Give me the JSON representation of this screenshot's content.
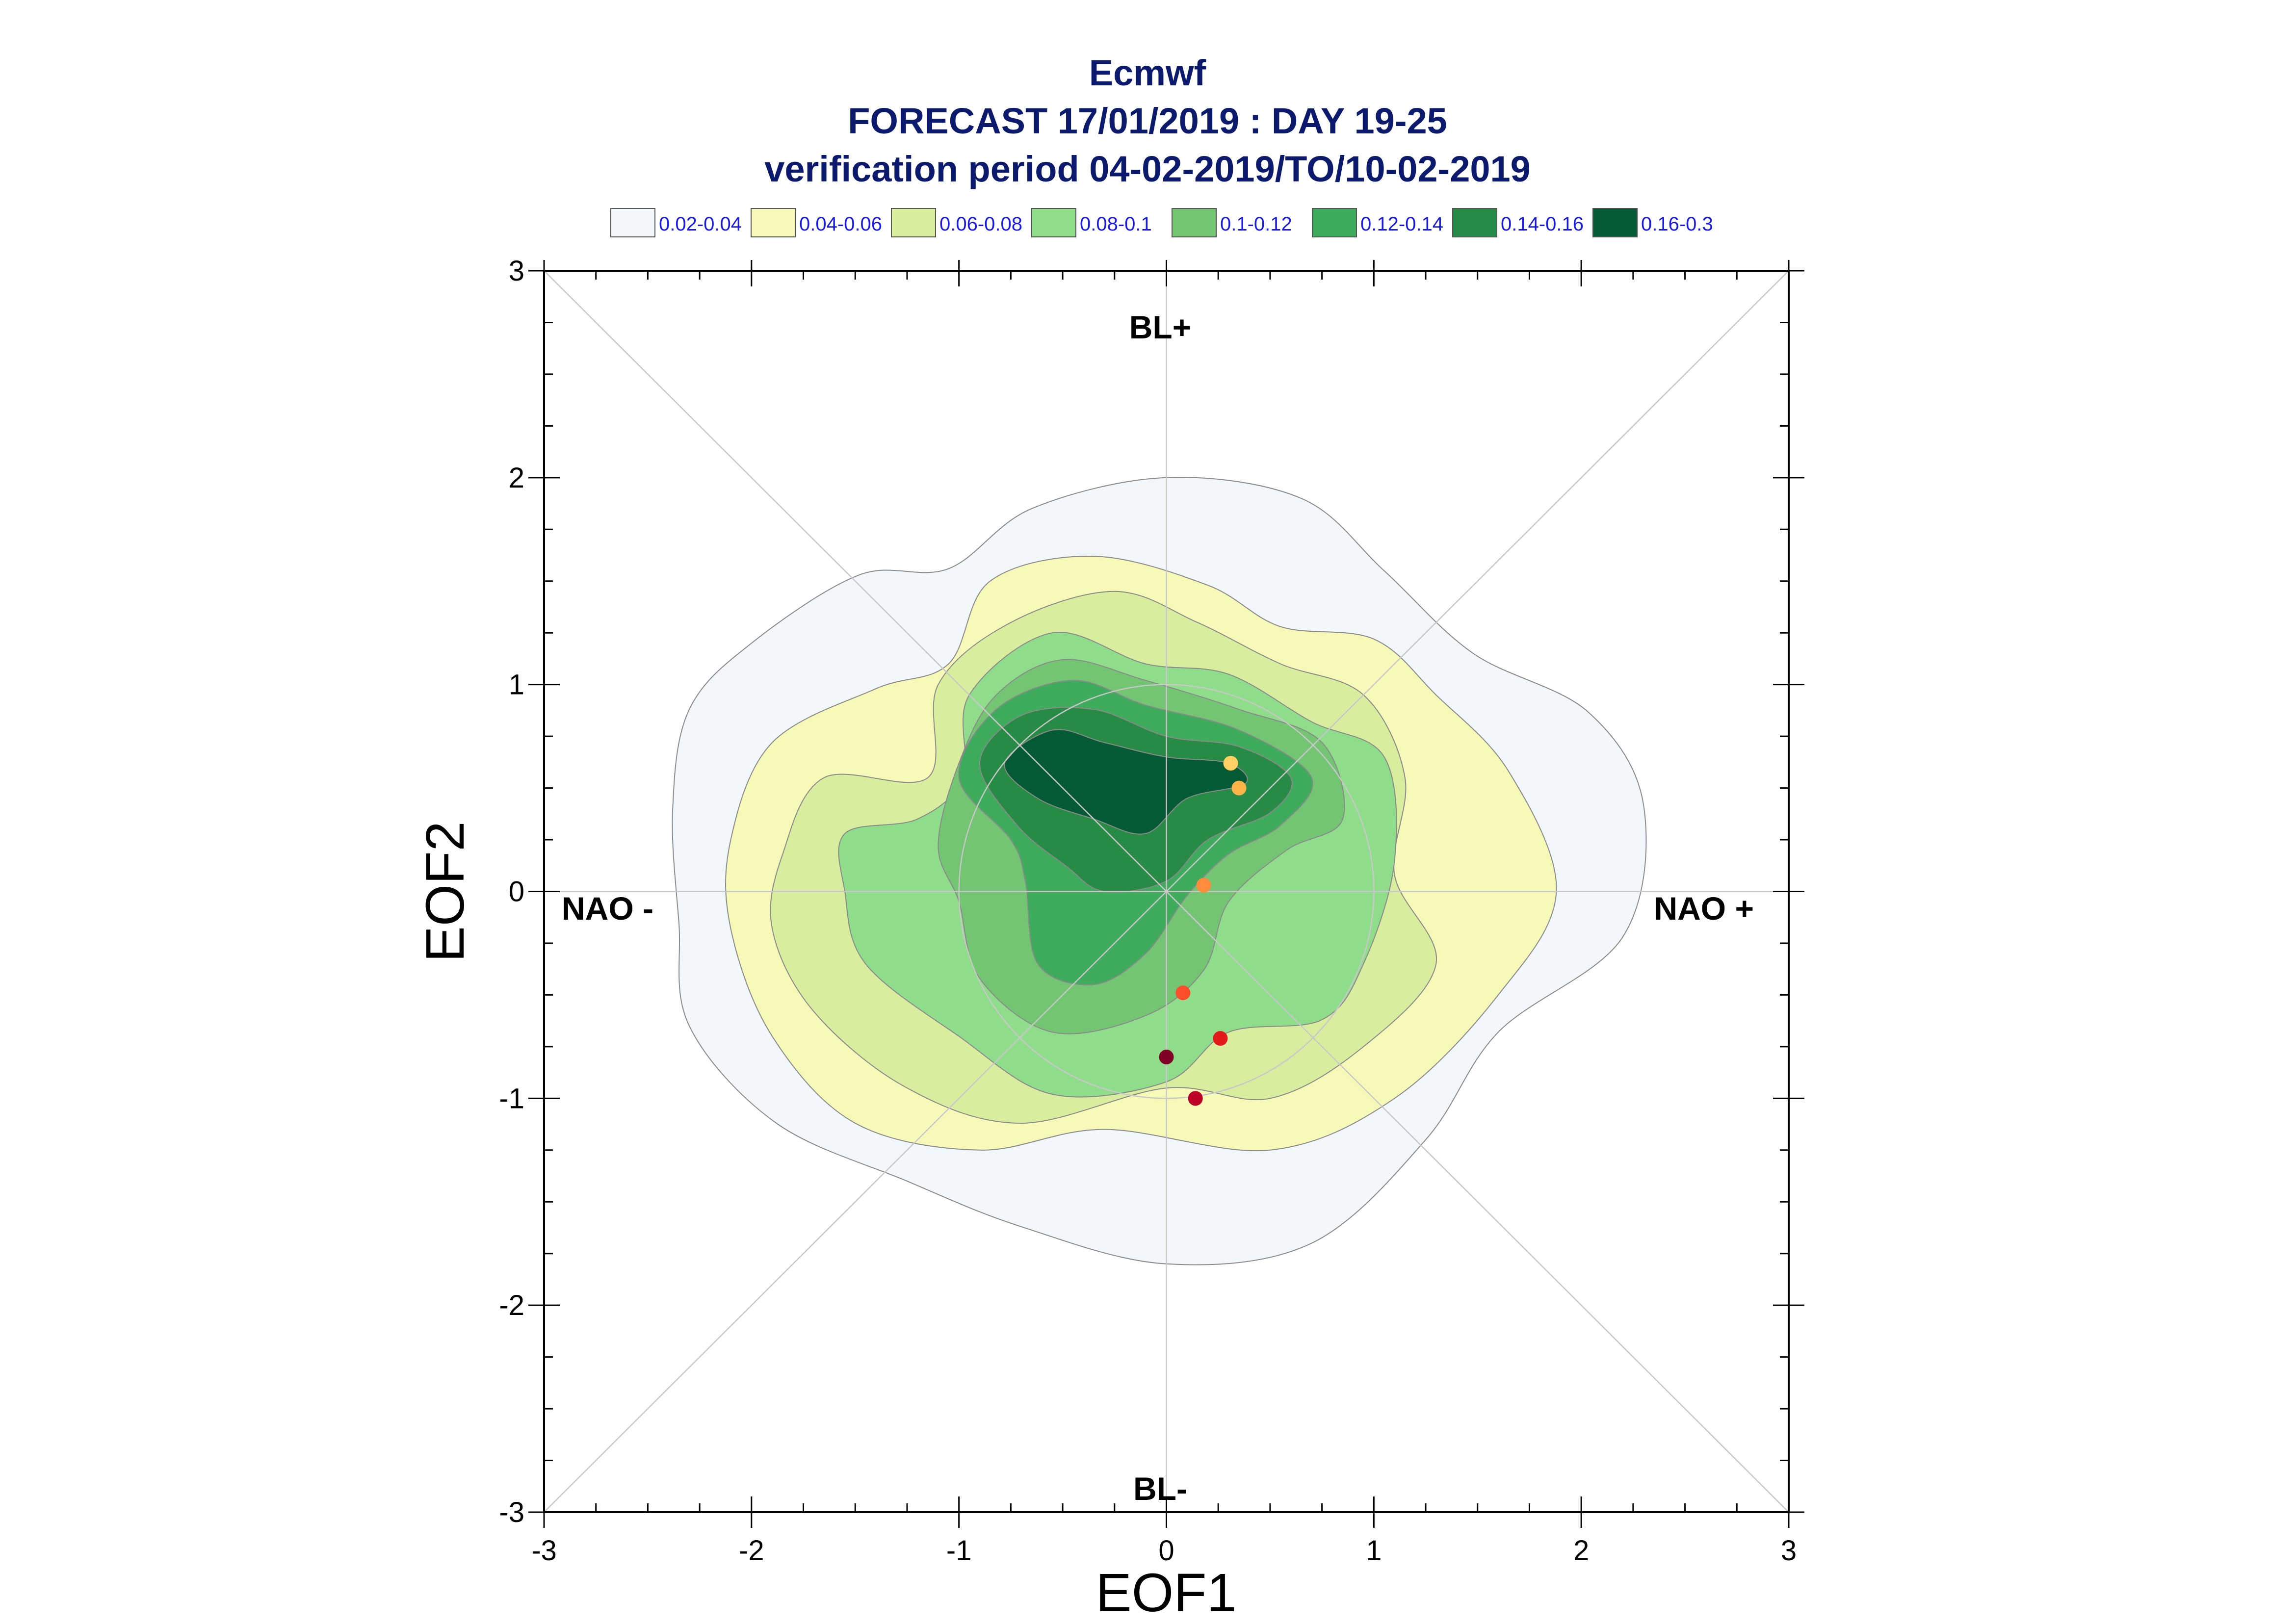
{
  "header": {
    "title": "Ecmwf",
    "line2": "FORECAST 17/01/2019 : DAY 19-25",
    "line3": "verification period 04-02-2019/TO/10-02-2019"
  },
  "legend": [
    {
      "label": "0.02-0.04",
      "color": "#f2f7fb"
    },
    {
      "label": "0.04-0.06",
      "color": "#f6f9b8"
    },
    {
      "label": "0.06-0.08",
      "color": "#d8ed9e"
    },
    {
      "label": "0.08-0.1",
      "color": "#8fdd8a"
    },
    {
      "label": "0.1-0.12",
      "color": "#73c473"
    },
    {
      "label": "0.12-0.14",
      "color": "#3fab5d"
    },
    {
      "label": "0.14-0.16",
      "color": "#278b46"
    },
    {
      "label": "0.16-0.3",
      "color": "#035a35"
    }
  ],
  "chart_data": {
    "type": "contour-scatter",
    "xlabel": "EOF1",
    "ylabel": "EOF2",
    "xlim": [
      -3,
      3
    ],
    "ylim": [
      -3,
      3
    ],
    "xticks": [
      "-3",
      "-2",
      "-1",
      "0",
      "1",
      "2",
      "3"
    ],
    "yticks": [
      "-3",
      "-2",
      "-1",
      "0",
      "1",
      "2",
      "3"
    ],
    "region_labels": {
      "top": "BL+",
      "bottom": "BL-",
      "left": "NAO -",
      "right": "NAO +"
    },
    "grid": "diagonals, axes through origin, unit circle",
    "contour_levels": [
      "0.02-0.04",
      "0.04-0.06",
      "0.06-0.08",
      "0.08-0.1",
      "0.1-0.12",
      "0.12-0.14",
      "0.14-0.16",
      "0.16-0.3"
    ],
    "contours": [
      {
        "level": "0.02-0.04",
        "points": [
          [
            -2.38,
            0.4
          ],
          [
            -2.3,
            0.88
          ],
          [
            -2.0,
            1.2
          ],
          [
            -1.48,
            1.53
          ],
          [
            -1.05,
            1.56
          ],
          [
            -0.65,
            1.85
          ],
          [
            0,
            2.0
          ],
          [
            0.65,
            1.9
          ],
          [
            1.05,
            1.55
          ],
          [
            1.48,
            1.15
          ],
          [
            2.03,
            0.87
          ],
          [
            2.3,
            0.42
          ],
          [
            2.2,
            -0.22
          ],
          [
            1.6,
            -0.68
          ],
          [
            1.25,
            -1.2
          ],
          [
            0.7,
            -1.7
          ],
          [
            0,
            -1.8
          ],
          [
            -0.7,
            -1.62
          ],
          [
            -1.25,
            -1.4
          ],
          [
            -1.88,
            -1.12
          ],
          [
            -2.3,
            -0.65
          ],
          [
            -2.35,
            -0.15
          ]
        ]
      },
      {
        "level": "0.04-0.06",
        "points": [
          [
            -2.1,
            0.25
          ],
          [
            -1.9,
            0.72
          ],
          [
            -1.4,
            0.98
          ],
          [
            -1.05,
            1.1
          ],
          [
            -0.85,
            1.5
          ],
          [
            -0.35,
            1.62
          ],
          [
            0.2,
            1.48
          ],
          [
            0.55,
            1.28
          ],
          [
            1.0,
            1.22
          ],
          [
            1.3,
            0.95
          ],
          [
            1.65,
            0.58
          ],
          [
            1.88,
            0.0
          ],
          [
            1.6,
            -0.5
          ],
          [
            1.1,
            -1.0
          ],
          [
            0.5,
            -1.25
          ],
          [
            -0.3,
            -1.15
          ],
          [
            -0.9,
            -1.25
          ],
          [
            -1.5,
            -1.12
          ],
          [
            -1.9,
            -0.7
          ],
          [
            -2.1,
            -0.18
          ]
        ]
      },
      {
        "level": "0.06-0.08",
        "points": [
          [
            -1.85,
            0.18
          ],
          [
            -1.65,
            0.55
          ],
          [
            -1.15,
            0.55
          ],
          [
            -1.1,
            1.0
          ],
          [
            -0.75,
            1.3
          ],
          [
            -0.25,
            1.45
          ],
          [
            0.15,
            1.3
          ],
          [
            0.55,
            1.1
          ],
          [
            0.95,
            0.95
          ],
          [
            1.15,
            0.55
          ],
          [
            1.1,
            0.08
          ],
          [
            1.3,
            -0.35
          ],
          [
            0.95,
            -0.75
          ],
          [
            0.5,
            -1.0
          ],
          [
            0.0,
            -0.95
          ],
          [
            -0.7,
            -1.12
          ],
          [
            -1.25,
            -0.95
          ],
          [
            -1.7,
            -0.58
          ],
          [
            -1.9,
            -0.18
          ]
        ]
      },
      {
        "level": "0.08-0.1",
        "points": [
          [
            -1.55,
            0.0
          ],
          [
            -1.55,
            0.28
          ],
          [
            -1.2,
            0.35
          ],
          [
            -0.98,
            0.55
          ],
          [
            -0.95,
            0.95
          ],
          [
            -0.55,
            1.25
          ],
          [
            -0.1,
            1.1
          ],
          [
            0.3,
            1.05
          ],
          [
            0.7,
            0.82
          ],
          [
            1.05,
            0.65
          ],
          [
            1.1,
            0.15
          ],
          [
            0.95,
            -0.35
          ],
          [
            0.75,
            -0.62
          ],
          [
            0.3,
            -0.68
          ],
          [
            0.0,
            -0.92
          ],
          [
            -0.55,
            -0.98
          ],
          [
            -1.0,
            -0.7
          ],
          [
            -1.45,
            -0.35
          ]
        ]
      },
      {
        "level": "0.1-0.12",
        "points": [
          [
            -1.1,
            0.22
          ],
          [
            -1.0,
            0.62
          ],
          [
            -0.82,
            0.95
          ],
          [
            -0.5,
            1.12
          ],
          [
            -0.1,
            1.02
          ],
          [
            0.35,
            0.88
          ],
          [
            0.75,
            0.72
          ],
          [
            0.85,
            0.35
          ],
          [
            0.58,
            0.2
          ],
          [
            0.3,
            -0.05
          ],
          [
            0.18,
            -0.38
          ],
          [
            -0.1,
            -0.6
          ],
          [
            -0.55,
            -0.68
          ],
          [
            -0.9,
            -0.42
          ],
          [
            -1.0,
            -0.05
          ]
        ]
      },
      {
        "level": "0.12-0.14",
        "points": [
          [
            -1.0,
            0.55
          ],
          [
            -0.82,
            0.88
          ],
          [
            -0.45,
            1.02
          ],
          [
            -0.1,
            0.9
          ],
          [
            0.35,
            0.78
          ],
          [
            0.7,
            0.55
          ],
          [
            0.55,
            0.32
          ],
          [
            0.3,
            0.18
          ],
          [
            0.1,
            -0.02
          ],
          [
            -0.1,
            -0.3
          ],
          [
            -0.35,
            -0.45
          ],
          [
            -0.62,
            -0.35
          ],
          [
            -0.68,
            0.05
          ],
          [
            -0.75,
            0.25
          ]
        ]
      },
      {
        "level": "0.14-0.16",
        "points": [
          [
            -0.9,
            0.62
          ],
          [
            -0.7,
            0.85
          ],
          [
            -0.35,
            0.88
          ],
          [
            0.0,
            0.75
          ],
          [
            0.35,
            0.7
          ],
          [
            0.6,
            0.55
          ],
          [
            0.5,
            0.38
          ],
          [
            0.2,
            0.25
          ],
          [
            0.0,
            0.05
          ],
          [
            -0.3,
            0.0
          ],
          [
            -0.48,
            0.12
          ],
          [
            -0.72,
            0.32
          ]
        ]
      },
      {
        "level": "0.16-0.3",
        "points": [
          [
            -0.78,
            0.62
          ],
          [
            -0.55,
            0.78
          ],
          [
            -0.3,
            0.72
          ],
          [
            0.0,
            0.65
          ],
          [
            0.3,
            0.62
          ],
          [
            0.38,
            0.52
          ],
          [
            0.1,
            0.45
          ],
          [
            -0.1,
            0.28
          ],
          [
            -0.35,
            0.35
          ],
          [
            -0.62,
            0.45
          ]
        ]
      }
    ],
    "points": [
      {
        "x": 0.31,
        "y": 0.62,
        "color": "#fcd062"
      },
      {
        "x": 0.35,
        "y": 0.5,
        "color": "#fcb44a"
      },
      {
        "x": 0.18,
        "y": 0.03,
        "color": "#fd8c3c"
      },
      {
        "x": 0.08,
        "y": -0.49,
        "color": "#fc4e2a"
      },
      {
        "x": 0.26,
        "y": -0.71,
        "color": "#e31a1c"
      },
      {
        "x": 0.0,
        "y": -0.8,
        "color": "#800026"
      },
      {
        "x": 0.14,
        "y": -1.0,
        "color": "#bd0026"
      }
    ]
  }
}
